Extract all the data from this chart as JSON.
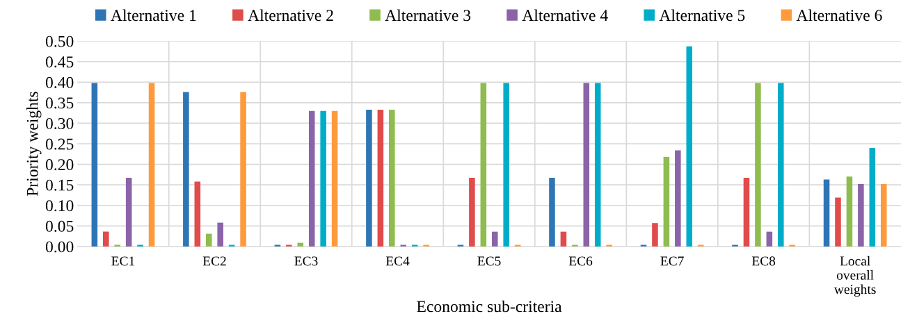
{
  "chart_data": {
    "type": "bar",
    "xlabel": "Economic sub-criteria",
    "ylabel": "Priority weights",
    "categories": [
      "EC1",
      "EC2",
      "EC3",
      "EC4",
      "EC5",
      "EC6",
      "EC7",
      "EC8",
      "Local\noverall\nweights"
    ],
    "series": [
      {
        "name": "Alternative 1",
        "color": "#2e75b6",
        "values": [
          0.398,
          0.376,
          0.004,
          0.333,
          0.004,
          0.167,
          0.004,
          0.004,
          0.163
        ]
      },
      {
        "name": "Alternative 2",
        "color": "#e04b4b",
        "values": [
          0.036,
          0.158,
          0.004,
          0.333,
          0.167,
          0.036,
          0.057,
          0.167,
          0.119
        ]
      },
      {
        "name": "Alternative 3",
        "color": "#8fbc4f",
        "values": [
          0.004,
          0.031,
          0.009,
          0.333,
          0.398,
          0.004,
          0.218,
          0.398,
          0.17
        ]
      },
      {
        "name": "Alternative 4",
        "color": "#8a63a8",
        "values": [
          0.167,
          0.058,
          0.33,
          0.004,
          0.036,
          0.398,
          0.234,
          0.036,
          0.152
        ]
      },
      {
        "name": "Alternative 5",
        "color": "#00adc8",
        "values": [
          0.004,
          0.004,
          0.33,
          0.004,
          0.398,
          0.398,
          0.487,
          0.398,
          0.24
        ]
      },
      {
        "name": "Alternative 6",
        "color": "#ff9a3c",
        "values": [
          0.398,
          0.376,
          0.33,
          0.004,
          0.004,
          0.004,
          0.004,
          0.004,
          0.152
        ]
      }
    ],
    "ylim": [
      0,
      0.5
    ],
    "yticks": [
      {
        "value": 0,
        "label": "0.00"
      },
      {
        "value": 0.05,
        "label": "0.05"
      },
      {
        "value": 0.1,
        "label": "0.10"
      },
      {
        "value": 0.15,
        "label": "0.15"
      },
      {
        "value": 0.2,
        "label": "0.20"
      },
      {
        "value": 0.25,
        "label": "0.25"
      },
      {
        "value": 0.3,
        "label": "0.30"
      },
      {
        "value": 0.35,
        "label": "0.35"
      },
      {
        "value": 0.4,
        "label": "0.40"
      },
      {
        "value": 0.45,
        "label": "0.45"
      },
      {
        "value": 0.5,
        "label": "0.50"
      }
    ],
    "grid": true,
    "legend": "top"
  }
}
